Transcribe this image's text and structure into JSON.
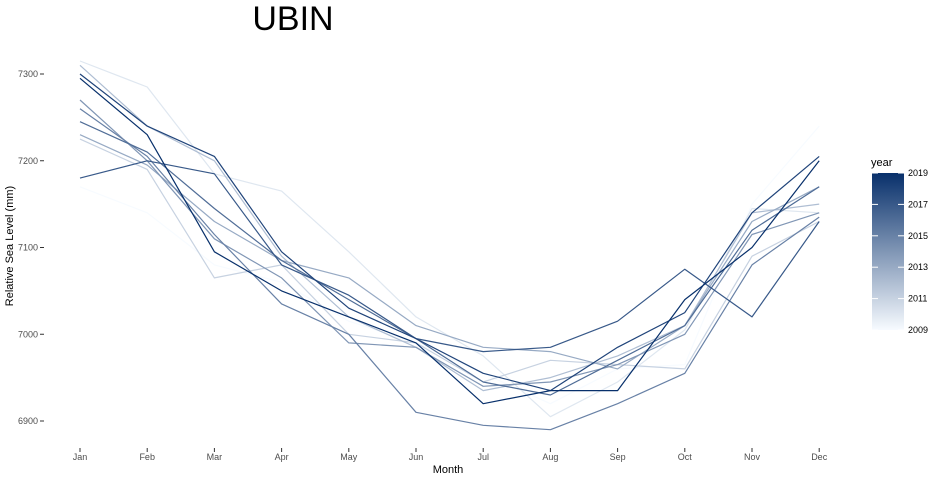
{
  "chart_data": {
    "type": "line",
    "title": "UBIN",
    "xlabel": "Month",
    "ylabel": "Relative Sea Level (mm)",
    "categories": [
      "Jan",
      "Feb",
      "Mar",
      "Apr",
      "May",
      "Jun",
      "Jul",
      "Aug",
      "Sep",
      "Oct",
      "Nov",
      "Dec"
    ],
    "y_ticks": [
      6900,
      7000,
      7100,
      7200,
      7300
    ],
    "ylim": [
      6875,
      7325
    ],
    "grid": false,
    "legend": {
      "title": "year",
      "placement": "right",
      "range": [
        2009,
        2019
      ],
      "labels": [
        "2019",
        "2017",
        "2015",
        "2013",
        "2011",
        "2009"
      ],
      "color_low": "#f7fbff",
      "color_high": "#08306b"
    },
    "series": [
      {
        "name": "2009",
        "values": [
          7170,
          7140,
          7080,
          7060,
          7015,
          6990,
          6955,
          6920,
          6960,
          6965,
          7150,
          7240
        ]
      },
      {
        "name": "2010",
        "values": [
          7315,
          7285,
          7185,
          7165,
          7095,
          7020,
          6975,
          6905,
          6945,
          7005,
          7145,
          7140
        ]
      },
      {
        "name": "2011",
        "values": [
          7225,
          7190,
          7065,
          7080,
          7000,
          6990,
          6945,
          6970,
          6965,
          6960,
          7090,
          7130
        ]
      },
      {
        "name": "2012",
        "values": [
          7310,
          7240,
          7200,
          7090,
          7020,
          6985,
          6935,
          6950,
          6975,
          7010,
          7140,
          7150
        ]
      },
      {
        "name": "2013",
        "values": [
          7230,
          7195,
          7130,
          7085,
          7065,
          7010,
          6985,
          6980,
          6960,
          7010,
          7130,
          7170
        ]
      },
      {
        "name": "2014",
        "values": [
          7270,
          7200,
          7110,
          7065,
          6990,
          6985,
          6940,
          6945,
          6965,
          7000,
          7115,
          7140
        ]
      },
      {
        "name": "2015",
        "values": [
          7260,
          7205,
          7115,
          7035,
          7000,
          6910,
          6895,
          6890,
          6920,
          6955,
          7080,
          7135
        ]
      },
      {
        "name": "2016",
        "values": [
          7245,
          7210,
          7145,
          7085,
          7040,
          6995,
          6945,
          6930,
          6970,
          7010,
          7120,
          7170
        ]
      },
      {
        "name": "2017",
        "values": [
          7180,
          7200,
          7185,
          7080,
          7045,
          6995,
          6980,
          6985,
          7015,
          7075,
          7020,
          7130
        ]
      },
      {
        "name": "2018",
        "values": [
          7300,
          7240,
          7205,
          7095,
          7030,
          6995,
          6955,
          6935,
          6985,
          7025,
          7140,
          7205
        ]
      },
      {
        "name": "2019",
        "values": [
          7295,
          7230,
          7095,
          7050,
          7020,
          6990,
          6920,
          6935,
          6935,
          7040,
          7100,
          7200
        ]
      }
    ]
  }
}
